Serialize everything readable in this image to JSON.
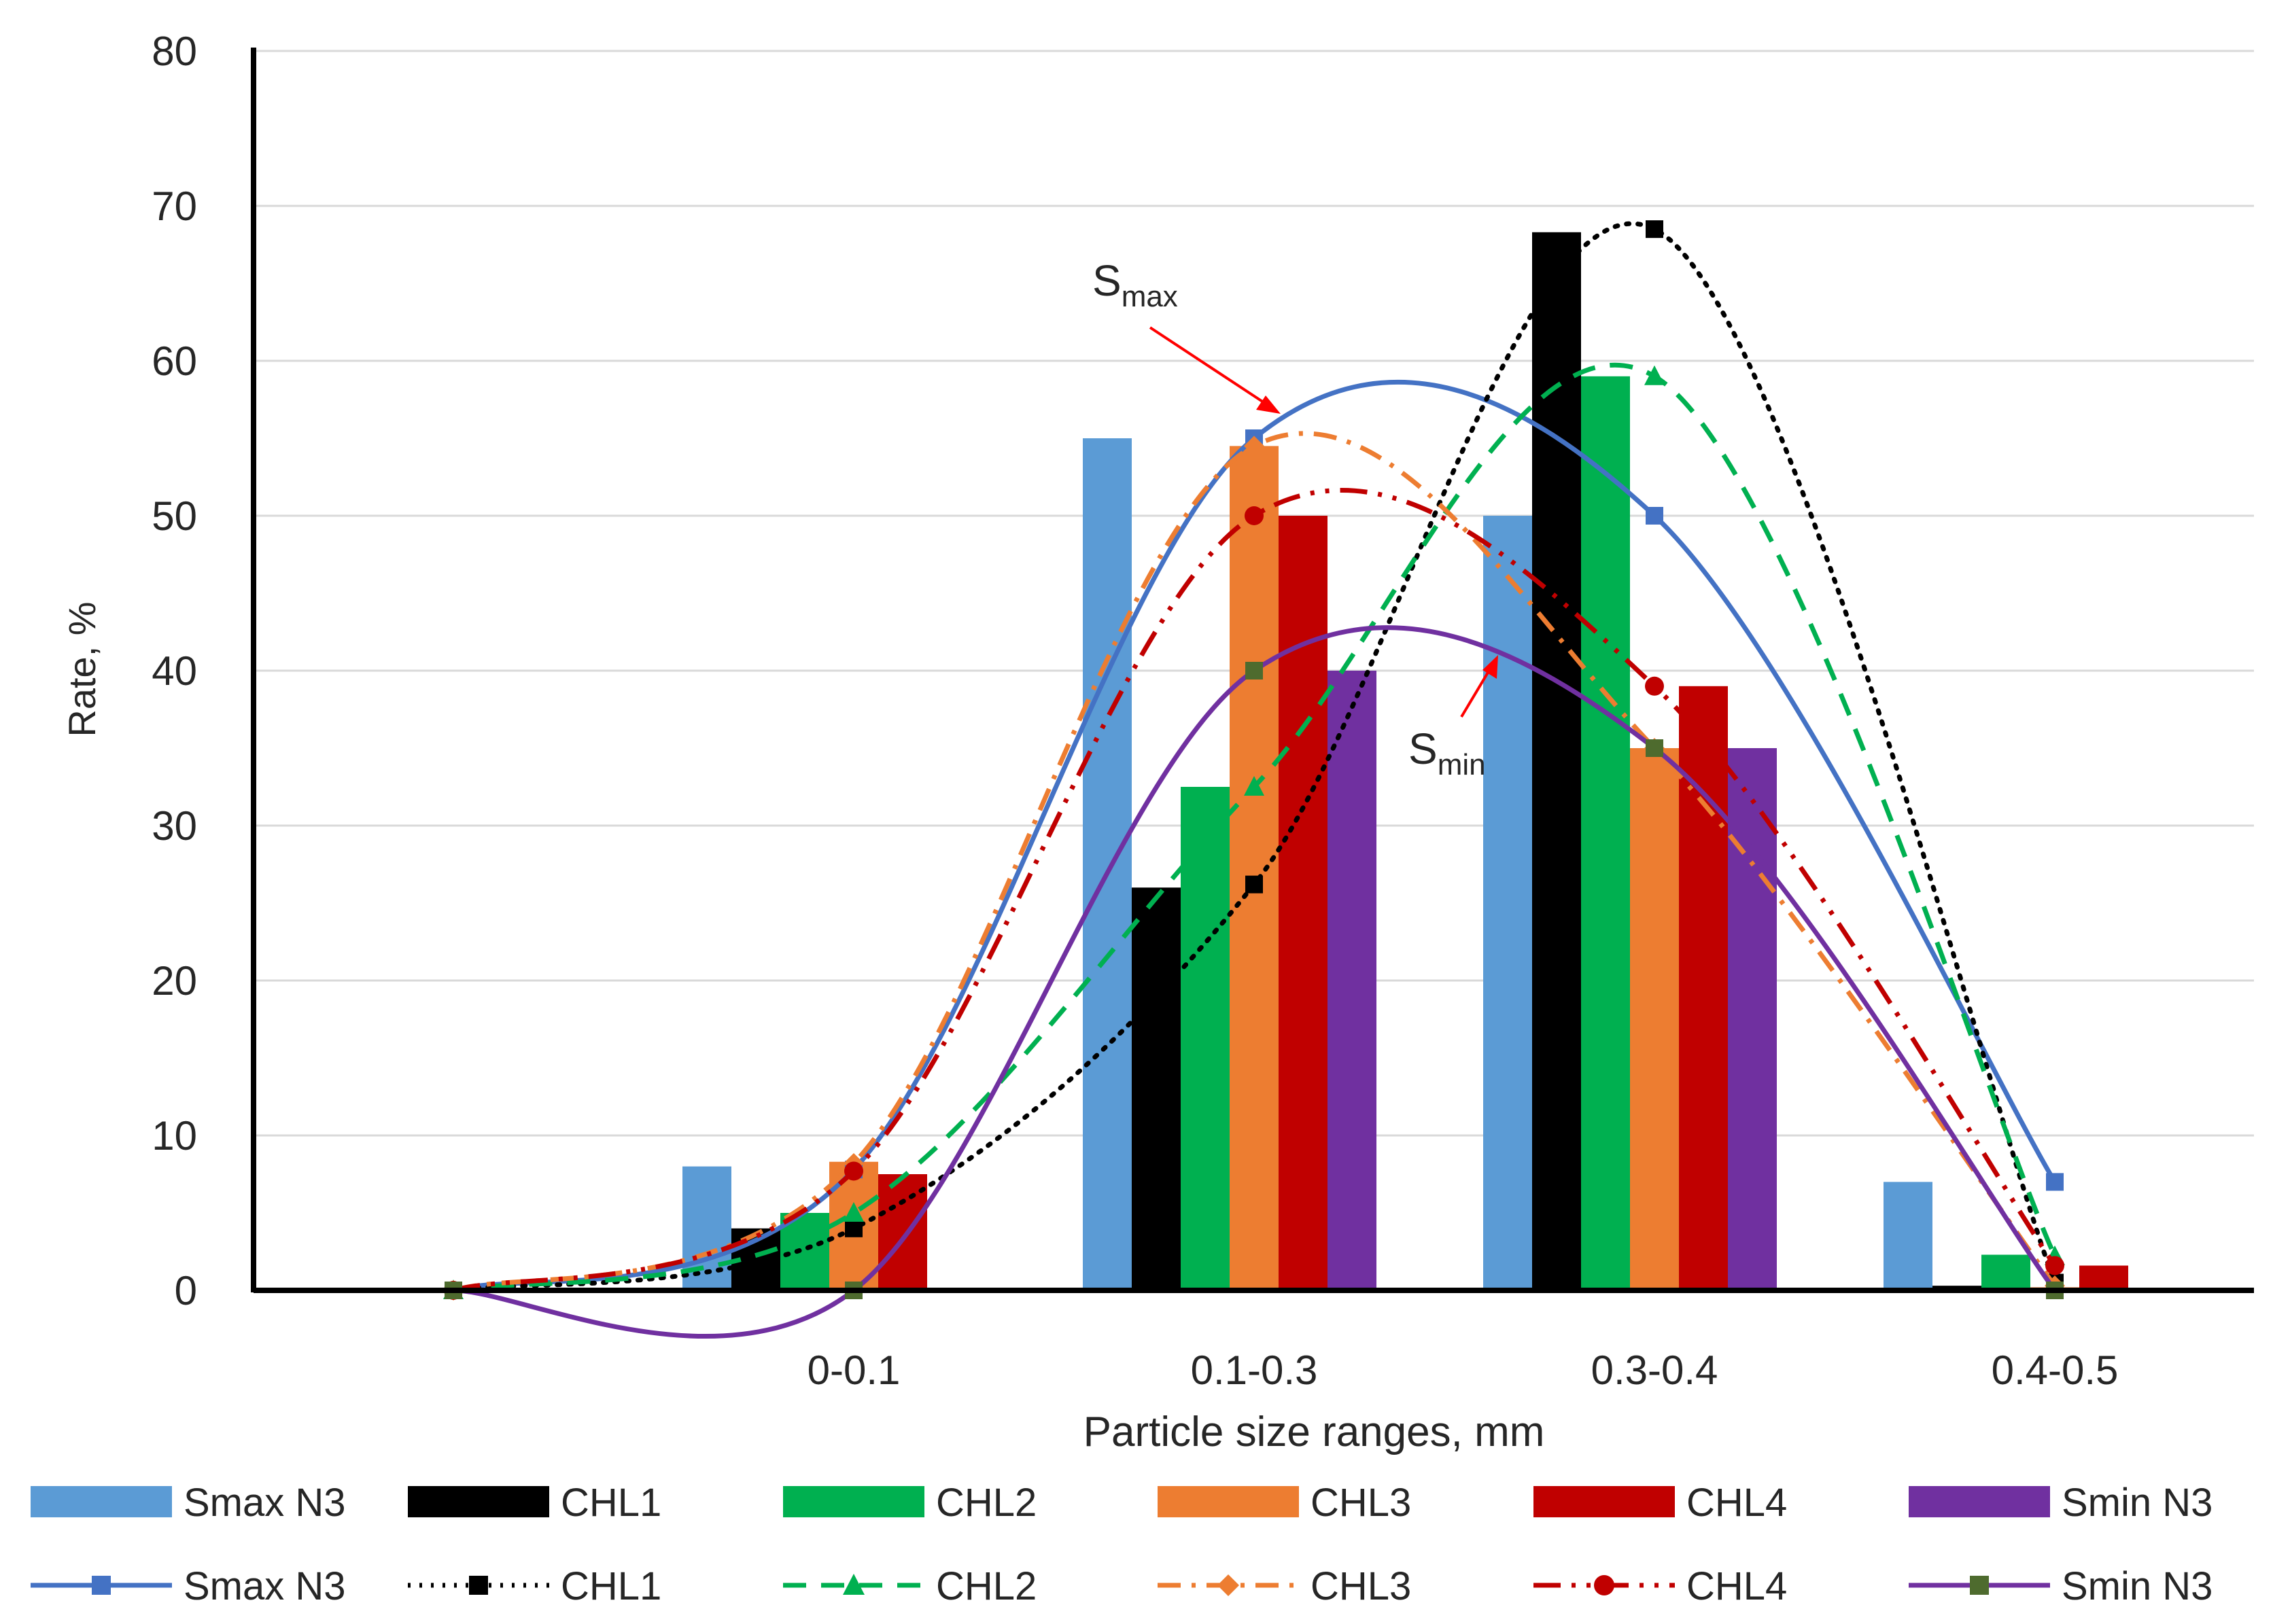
{
  "chart_data": {
    "type": "bar",
    "title": "",
    "xlabel": "Particle size ranges, mm",
    "ylabel": "Rate, %",
    "ylim": [
      0,
      80
    ],
    "yticks": [
      0,
      10,
      20,
      30,
      40,
      50,
      60,
      70,
      80
    ],
    "grid": true,
    "categories": [
      "0-0.1",
      "0.1-0.3",
      "0.3-0.4",
      "0.4-0.5"
    ],
    "series": [
      {
        "name": "Smax N3",
        "color": "#5B9BD5",
        "values": [
          8,
          55,
          50,
          7
        ]
      },
      {
        "name": "CHL1",
        "color": "#000000",
        "values": [
          4,
          26,
          68.3,
          0.3
        ]
      },
      {
        "name": "CHL2",
        "color": "#00B050",
        "values": [
          5,
          32.5,
          59,
          2.3
        ]
      },
      {
        "name": "CHL3",
        "color": "#ED7D31",
        "values": [
          8.3,
          54.5,
          35,
          0.2
        ]
      },
      {
        "name": "CHL4",
        "color": "#C00000",
        "values": [
          7.5,
          50,
          39,
          1.6
        ]
      },
      {
        "name": "Smin N3",
        "color": "#7030A0",
        "values": [
          0,
          40,
          35,
          0
        ]
      }
    ],
    "line_series": [
      {
        "name": "Smax N3",
        "color": "#4472C4",
        "style": "solid",
        "marker": "square",
        "values": [
          0,
          7.8,
          55,
          50,
          7
        ]
      },
      {
        "name": "CHL1",
        "color": "#000000",
        "style": "dotted",
        "marker": "square",
        "values": [
          0,
          4,
          26.2,
          68.5,
          0.5
        ]
      },
      {
        "name": "CHL2",
        "color": "#00B050",
        "style": "dashed",
        "marker": "triangle",
        "values": [
          0,
          5,
          32.5,
          59,
          2.2
        ]
      },
      {
        "name": "CHL3",
        "color": "#ED7D31",
        "style": "dashdot",
        "marker": "diamond",
        "values": [
          0,
          8.2,
          54.5,
          35,
          0.3
        ]
      },
      {
        "name": "CHL4",
        "color": "#C00000",
        "style": "dashdotdot",
        "marker": "circle",
        "values": [
          0,
          7.7,
          50,
          39,
          1.6
        ]
      },
      {
        "name": "Smin N3",
        "color": "#7030A0",
        "style": "solid",
        "marker": "square",
        "marker_color": "#4E6B2E",
        "values": [
          0,
          0,
          40,
          35,
          0
        ]
      }
    ],
    "annotations": [
      {
        "text": "S",
        "subscript": "max"
      },
      {
        "text": "S",
        "subscript": "min"
      }
    ],
    "legend_position": "bottom"
  }
}
